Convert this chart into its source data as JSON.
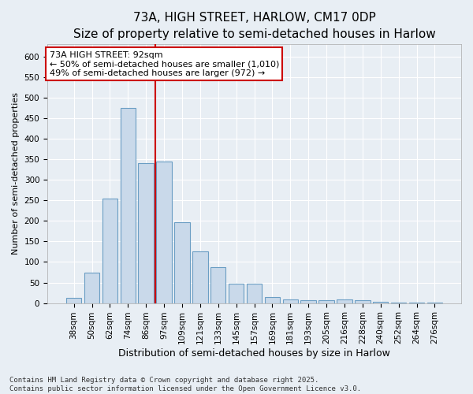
{
  "title": "73A, HIGH STREET, HARLOW, CM17 0DP",
  "subtitle": "Size of property relative to semi-detached houses in Harlow",
  "xlabel": "Distribution of semi-detached houses by size in Harlow",
  "ylabel": "Number of semi-detached properties",
  "categories": [
    "38sqm",
    "50sqm",
    "62sqm",
    "74sqm",
    "86sqm",
    "97sqm",
    "109sqm",
    "121sqm",
    "133sqm",
    "145sqm",
    "157sqm",
    "169sqm",
    "181sqm",
    "193sqm",
    "205sqm",
    "216sqm",
    "228sqm",
    "240sqm",
    "252sqm",
    "264sqm",
    "276sqm"
  ],
  "values": [
    13,
    75,
    255,
    475,
    340,
    345,
    196,
    126,
    87,
    47,
    47,
    14,
    9,
    6,
    6,
    9,
    6,
    4,
    1,
    2,
    2
  ],
  "bar_color": "#c9d9ea",
  "bar_edge_color": "#6b9ec4",
  "vline_x": 4.5,
  "vline_color": "#cc0000",
  "annotation_line1": "73A HIGH STREET: 92sqm",
  "annotation_line2": "← 50% of semi-detached houses are smaller (1,010)",
  "annotation_line3": "49% of semi-detached houses are larger (972) →",
  "annotation_box_color": "#ffffff",
  "annotation_box_edge": "#cc0000",
  "ylim": [
    0,
    630
  ],
  "yticks": [
    0,
    50,
    100,
    150,
    200,
    250,
    300,
    350,
    400,
    450,
    500,
    550,
    600
  ],
  "background_color": "#e8eef4",
  "plot_background": "#e8eef4",
  "footer": "Contains HM Land Registry data © Crown copyright and database right 2025.\nContains public sector information licensed under the Open Government Licence v3.0.",
  "title_fontsize": 11,
  "xlabel_fontsize": 9,
  "ylabel_fontsize": 8,
  "tick_fontsize": 7.5,
  "annotation_fontsize": 8,
  "footer_fontsize": 6.5
}
